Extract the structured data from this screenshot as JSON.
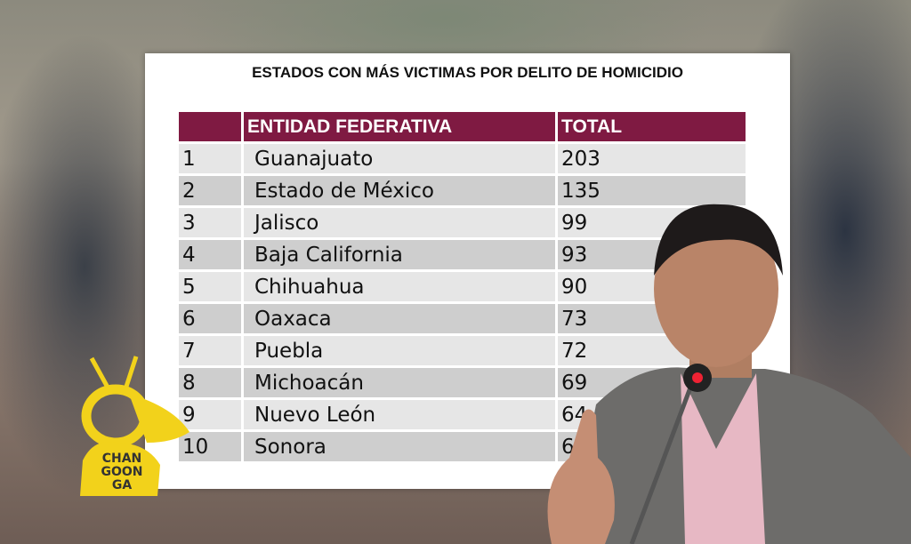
{
  "title": "ESTADOS CON MÁS VICTIMAS POR DELITO DE HOMICIDIO",
  "table": {
    "headers": [
      "",
      "ENTIDAD FEDERATIVA",
      "TOTAL"
    ],
    "rows": [
      {
        "rank": "1",
        "state": "Guanajuato",
        "total": "203"
      },
      {
        "rank": "2",
        "state": "Estado de México",
        "total": "135"
      },
      {
        "rank": "3",
        "state": "Jalisco",
        "total": "99"
      },
      {
        "rank": "4",
        "state": "Baja California",
        "total": "93"
      },
      {
        "rank": "5",
        "state": "Chihuahua",
        "total": "90"
      },
      {
        "rank": "6",
        "state": "Oaxaca",
        "total": "73"
      },
      {
        "rank": "7",
        "state": "Puebla",
        "total": "72"
      },
      {
        "rank": "8",
        "state": "Michoacán",
        "total": "69"
      },
      {
        "rank": "9",
        "state": "Nuevo León",
        "total": "64"
      },
      {
        "rank": "10",
        "state": "Sonora",
        "total": "6"
      }
    ]
  },
  "logo": {
    "text": "CHAN GOON GA .com",
    "color": "#f2d21b"
  },
  "colors": {
    "header": "#7f1a42",
    "row_light": "#e6e6e6",
    "row_dark": "#cecece"
  }
}
